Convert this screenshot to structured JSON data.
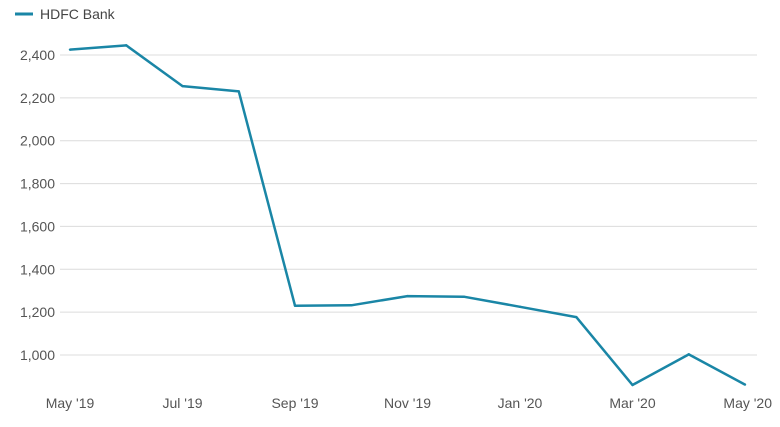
{
  "chart_data": {
    "type": "line",
    "title": "",
    "xlabel": "",
    "ylabel": "",
    "x": [
      "May '19",
      "Jun '19",
      "Jul '19",
      "Aug '19",
      "Sep '19",
      "Oct '19",
      "Nov '19",
      "Dec '19",
      "Jan '20",
      "Feb '20",
      "Mar '20",
      "Apr '20",
      "May '20"
    ],
    "x_tick_labels": [
      "May '19",
      "Jul '19",
      "Sep '19",
      "Nov '19",
      "Jan '20",
      "Mar '20",
      "May '20"
    ],
    "y_tick_labels": [
      "1,000",
      "1,200",
      "1,400",
      "1,600",
      "1,800",
      "2,000",
      "2,200",
      "2,400"
    ],
    "y_ticks": [
      1000,
      1200,
      1400,
      1600,
      1800,
      2000,
      2200,
      2400
    ],
    "ylim": [
      910,
      2450
    ],
    "grid": "horizontal",
    "legend": "top-left",
    "series": [
      {
        "name": "HDFC Bank",
        "color": "#1a86a6",
        "values": [
          2425,
          2445,
          2255,
          2230,
          1230,
          1232,
          1275,
          1272,
          1225,
          1177,
          860,
          1003,
          862
        ]
      }
    ]
  }
}
